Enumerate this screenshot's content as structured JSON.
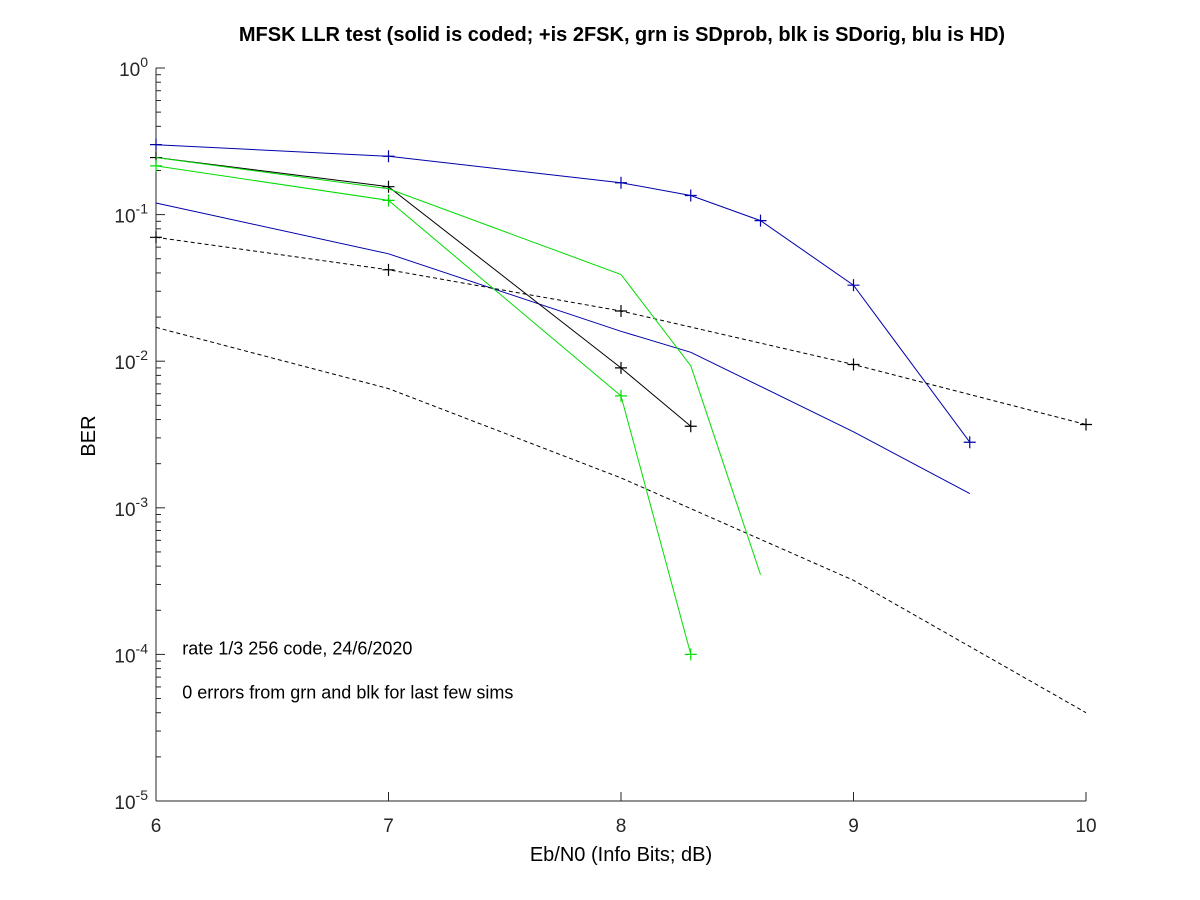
{
  "chart_data": {
    "type": "line",
    "title": "MFSK LLR test (solid is coded; +is 2FSK, grn is SDprob, blk is SDorig, blu is HD)",
    "xlabel": "Eb/N0 (Info Bits; dB)",
    "ylabel": "BER",
    "xlim": [
      6,
      10
    ],
    "ylim": [
      1e-05,
      1
    ],
    "yscale": "log",
    "grid": false,
    "x_ticks": [
      6,
      7,
      8,
      9,
      10
    ],
    "x_tick_labels": [
      "6",
      "7",
      "8",
      "9",
      "10"
    ],
    "y_ticks": [
      {
        "value": 1,
        "base": "10",
        "exp": "0"
      },
      {
        "value": 0.1,
        "base": "10",
        "exp": "-1"
      },
      {
        "value": 0.01,
        "base": "10",
        "exp": "-2"
      },
      {
        "value": 0.001,
        "base": "10",
        "exp": "-3"
      },
      {
        "value": 0.0001,
        "base": "10",
        "exp": "-4"
      },
      {
        "value": 1e-05,
        "base": "10",
        "exp": "-5"
      }
    ],
    "annotations": [
      {
        "text": "rate 1/3 256 code, 24/6/2020",
        "x": 6.1,
        "y": 0.00011
      },
      {
        "text": "0 errors from grn and blk for last few sims",
        "x": 6.1,
        "y": 5.5e-05
      }
    ],
    "series": [
      {
        "color": "#0000aa",
        "dash": false,
        "marker": "+",
        "x": [
          6,
          7,
          8,
          8.3,
          8.6,
          9,
          9.5
        ],
        "y": [
          0.3,
          0.25,
          0.165,
          0.135,
          0.091,
          0.033,
          0.0028
        ]
      },
      {
        "color": "#0000aa",
        "dash": false,
        "marker": "",
        "x": [
          6,
          7,
          8,
          8.3,
          9,
          9.5
        ],
        "y": [
          0.12,
          0.054,
          0.016,
          0.0115,
          0.0033,
          0.00125
        ]
      },
      {
        "color": "#000000",
        "dash": false,
        "marker": "+",
        "x": [
          6,
          7,
          8,
          8.3
        ],
        "y": [
          0.245,
          0.155,
          0.009,
          0.0036
        ]
      },
      {
        "color": "#000000",
        "dash": true,
        "marker": "+",
        "x": [
          6,
          7,
          8,
          9,
          10
        ],
        "y": [
          0.07,
          0.042,
          0.022,
          0.0095,
          0.0037
        ]
      },
      {
        "color": "#000000",
        "dash": true,
        "marker": "",
        "x": [
          6,
          7,
          8,
          9,
          10
        ],
        "y": [
          0.017,
          0.0065,
          0.0016,
          0.00032,
          4e-05
        ]
      },
      {
        "color": "#00dd00",
        "dash": false,
        "marker": "+",
        "x": [
          6,
          7,
          8,
          8.3
        ],
        "y": [
          0.215,
          0.125,
          0.0058,
          0.0001
        ]
      },
      {
        "color": "#00dd00",
        "dash": false,
        "marker": "",
        "x": [
          6,
          7,
          8,
          8.3,
          8.6
        ],
        "y": [
          0.245,
          0.15,
          0.039,
          0.0093,
          0.00035
        ]
      }
    ]
  }
}
